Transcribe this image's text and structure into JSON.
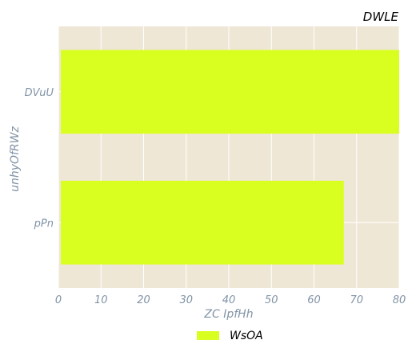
{
  "chart_data": {
    "type": "bar",
    "orientation": "horizontal",
    "title": "DWLE",
    "xlabel": "ZC IpfHh",
    "ylabel": "unhyOfRWz",
    "categories": [
      "DVuU",
      "pPn"
    ],
    "series": [
      {
        "name": "WsOA",
        "values": [
          80,
          67
        ],
        "color": "#d8ff1f"
      }
    ],
    "xlim": [
      0,
      80
    ],
    "xticks": [
      0,
      10,
      20,
      30,
      40,
      50,
      60,
      70,
      80
    ],
    "grid": true,
    "legend_position": "bottom-center",
    "colors": {
      "plot_background": "#efe7d6",
      "grid": "#ffffff",
      "tick_text": "#8193a6",
      "title_text": "#000000"
    }
  }
}
